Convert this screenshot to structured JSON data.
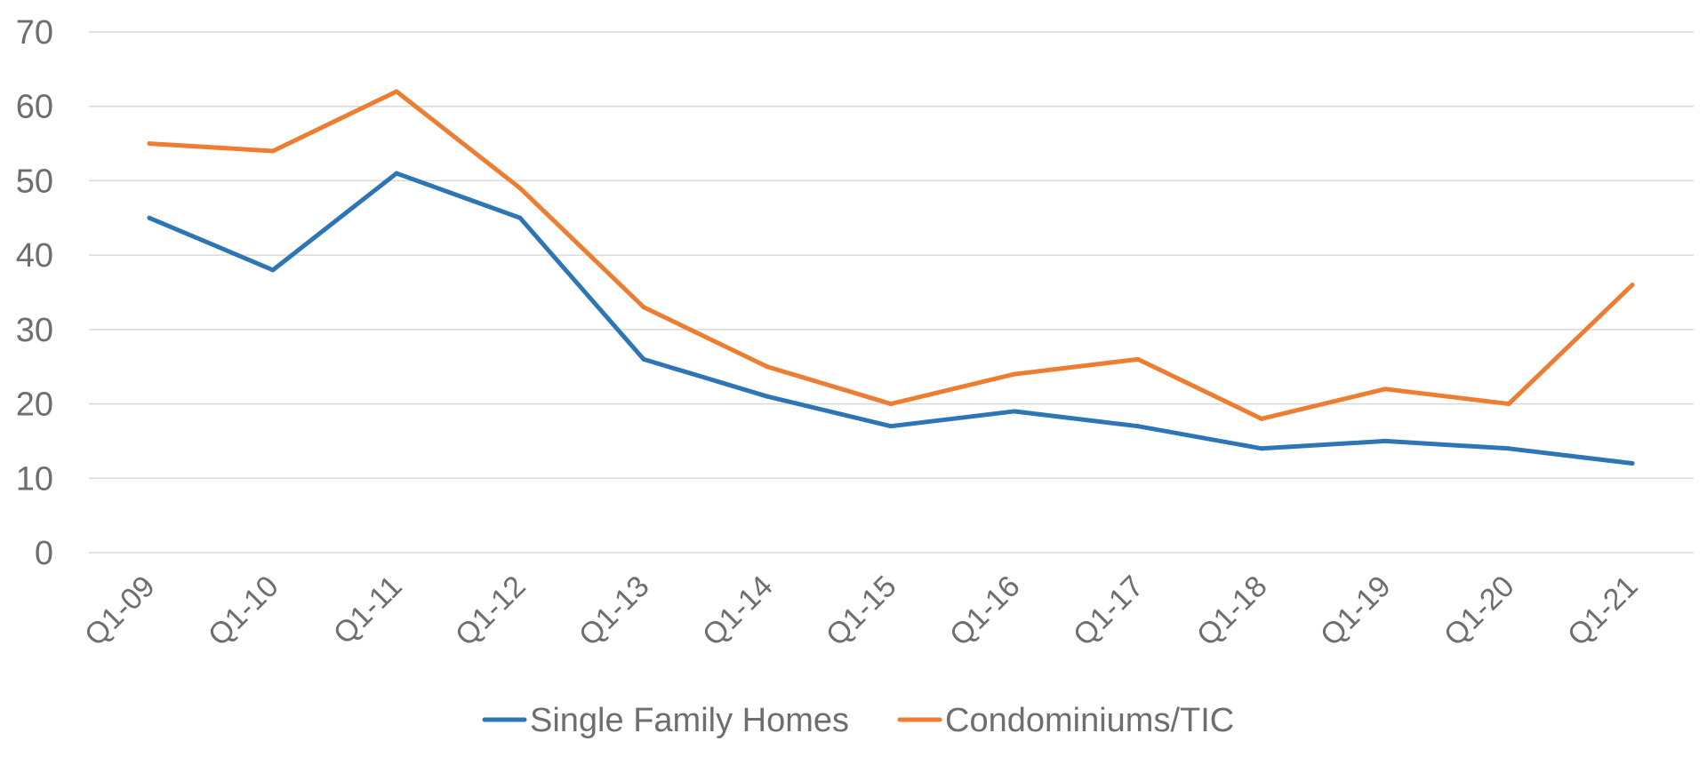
{
  "chart_data": {
    "type": "line",
    "title": "",
    "xlabel": "",
    "ylabel": "",
    "categories": [
      "Q1-09",
      "Q1-10",
      "Q1-11",
      "Q1-12",
      "Q1-13",
      "Q1-14",
      "Q1-15",
      "Q1-16",
      "Q1-17",
      "Q1-18",
      "Q1-19",
      "Q1-20",
      "Q1-21"
    ],
    "ylim": [
      0,
      70
    ],
    "yticks": [
      "0",
      "10",
      "20",
      "30",
      "40",
      "50",
      "60",
      "70"
    ],
    "grid": true,
    "legend_position": "bottom",
    "series": [
      {
        "name": "Single Family Homes",
        "color": "#2e75b6",
        "values": [
          45,
          38,
          51,
          45,
          26,
          21,
          17,
          19,
          17,
          14,
          15,
          14,
          12
        ]
      },
      {
        "name": "Condominiums/TIC",
        "color": "#ed7d31",
        "values": [
          55,
          54,
          62,
          49,
          33,
          25,
          20,
          24,
          26,
          18,
          22,
          20,
          36
        ]
      }
    ]
  }
}
